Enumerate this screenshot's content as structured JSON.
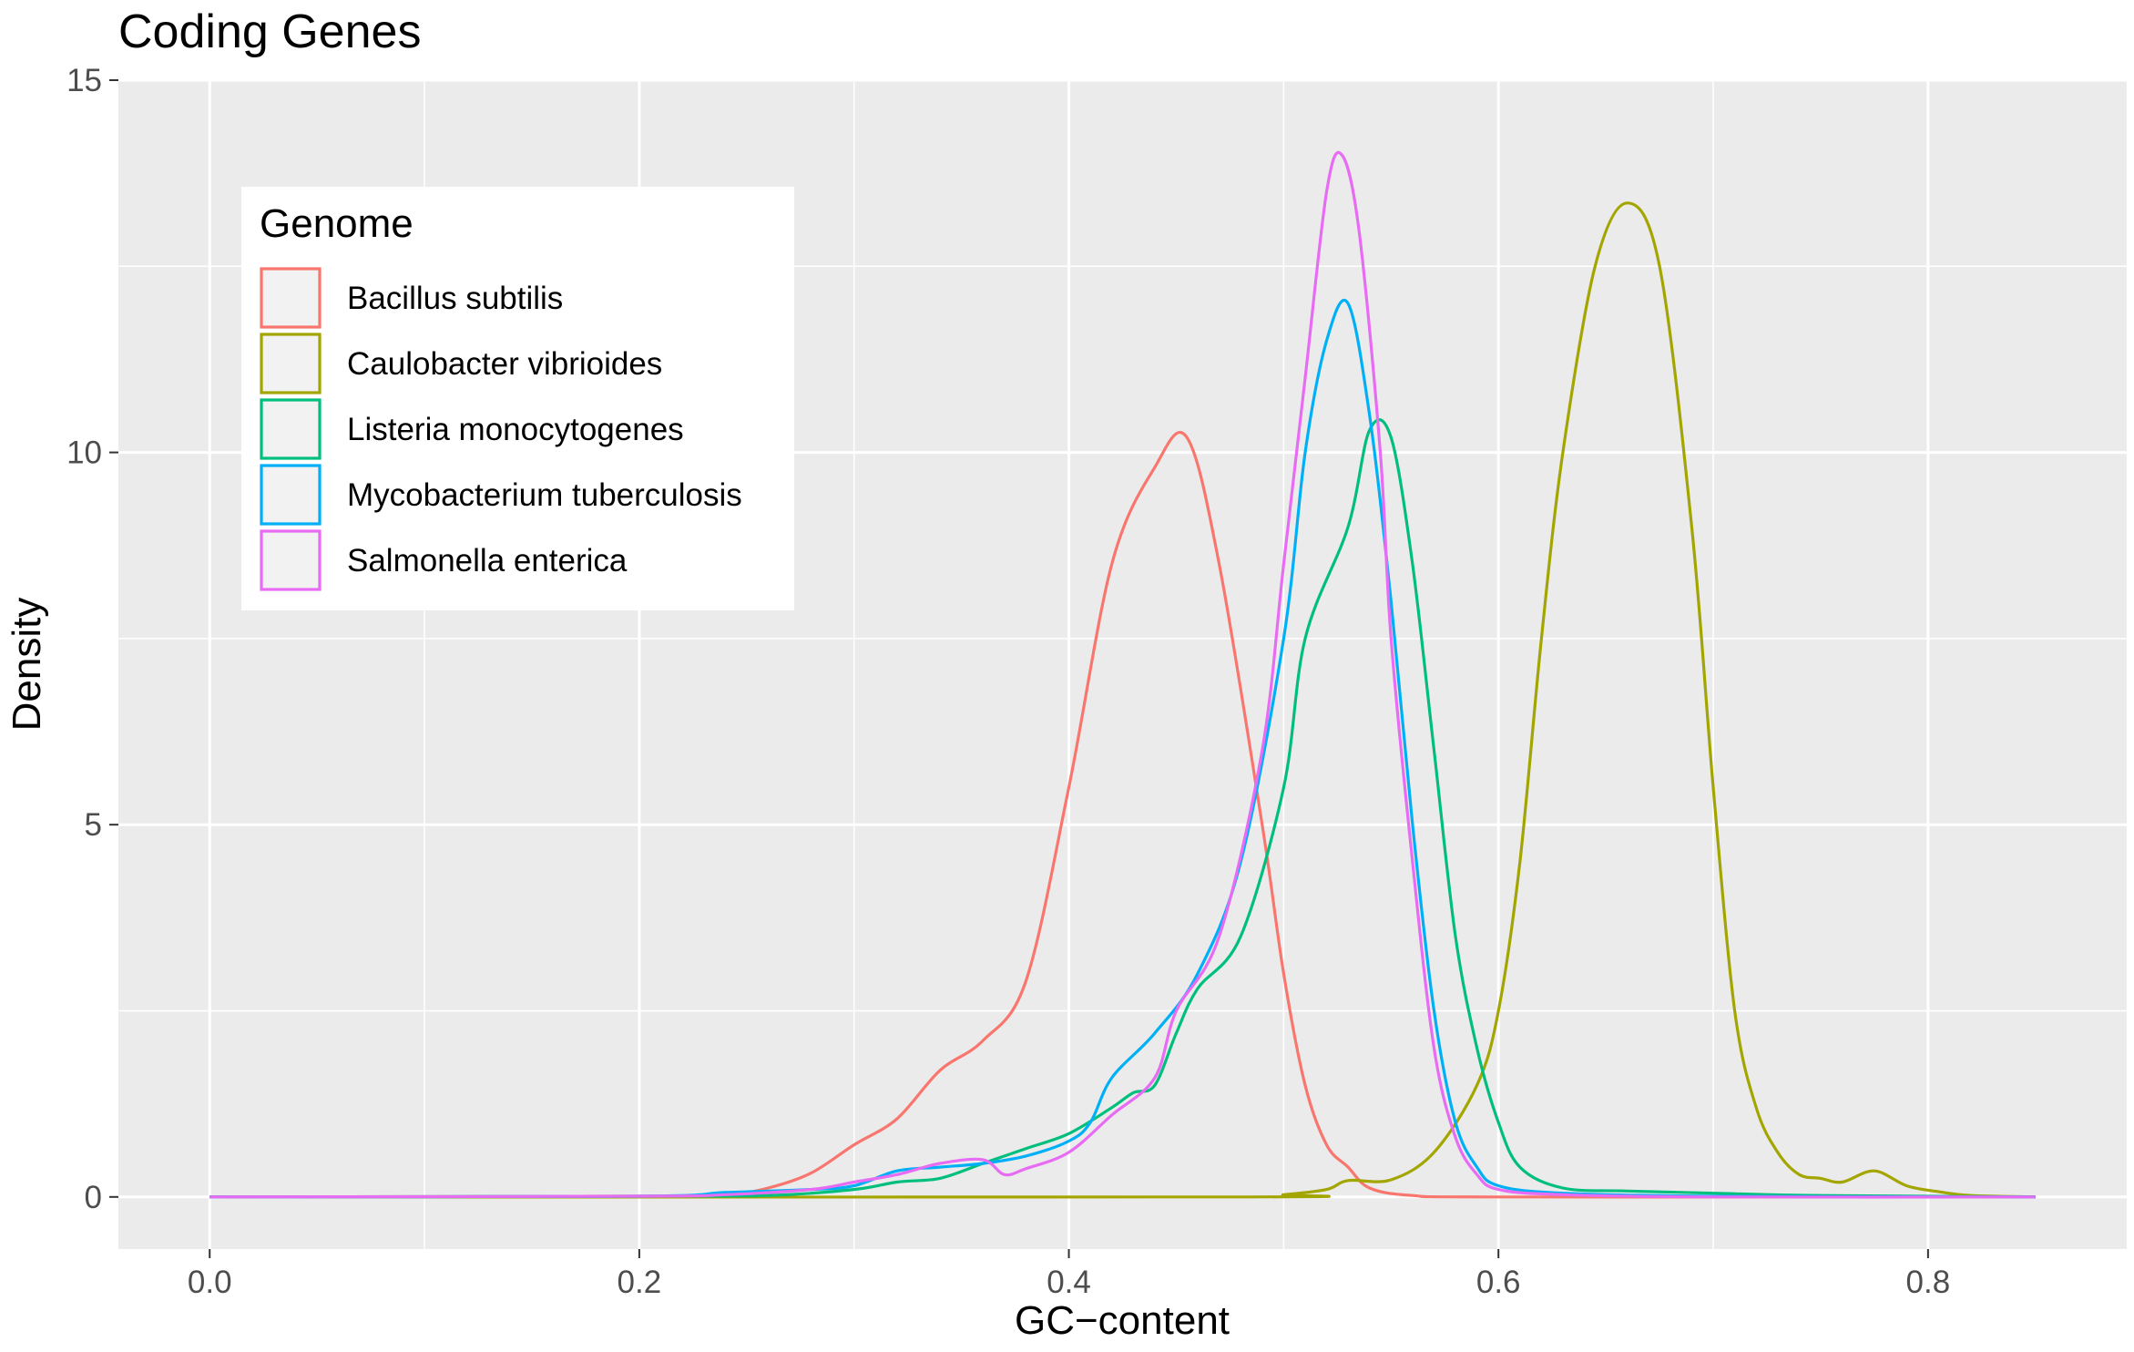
{
  "chart_data": {
    "type": "line",
    "title": "Coding Genes",
    "xlabel": "GC−content",
    "ylabel": "Density",
    "xlim": [
      -0.0425,
      0.8925
    ],
    "ylim": [
      -0.7,
      15.0
    ],
    "x_ticks": [
      0.0,
      0.2,
      0.4,
      0.6,
      0.8
    ],
    "x_tick_labels": [
      "0.0",
      "0.2",
      "0.4",
      "0.6",
      "0.8"
    ],
    "y_ticks": [
      0,
      5,
      10,
      15
    ],
    "y_tick_labels": [
      "0",
      "5",
      "10",
      "15"
    ],
    "grid": true,
    "panel_background": "#ebebeb",
    "legend": {
      "title": "Genome",
      "position": "top-left"
    },
    "series": [
      {
        "name": "Bacillus subtilis",
        "color": "#f8766d",
        "points": [
          [
            0.0,
            0
          ],
          [
            0.2,
            0.01
          ],
          [
            0.24,
            0.03
          ],
          [
            0.26,
            0.12
          ],
          [
            0.28,
            0.32
          ],
          [
            0.3,
            0.7
          ],
          [
            0.32,
            1.05
          ],
          [
            0.34,
            1.7
          ],
          [
            0.36,
            2.1
          ],
          [
            0.38,
            2.9
          ],
          [
            0.4,
            5.5
          ],
          [
            0.42,
            8.5
          ],
          [
            0.44,
            9.8
          ],
          [
            0.455,
            10.2
          ],
          [
            0.47,
            8.5
          ],
          [
            0.49,
            5.0
          ],
          [
            0.5,
            3.0
          ],
          [
            0.51,
            1.5
          ],
          [
            0.52,
            0.7
          ],
          [
            0.53,
            0.4
          ],
          [
            0.54,
            0.12
          ],
          [
            0.56,
            0.02
          ],
          [
            0.6,
            0.0
          ],
          [
            0.85,
            0.0
          ]
        ]
      },
      {
        "name": "Caulobacter vibrioides",
        "color": "#a3a500",
        "points": [
          [
            0.0,
            0
          ],
          [
            0.48,
            0.0
          ],
          [
            0.5,
            0.03
          ],
          [
            0.52,
            0.1
          ],
          [
            0.53,
            0.22
          ],
          [
            0.55,
            0.23
          ],
          [
            0.57,
            0.6
          ],
          [
            0.59,
            1.5
          ],
          [
            0.6,
            2.5
          ],
          [
            0.61,
            4.5
          ],
          [
            0.62,
            7.5
          ],
          [
            0.63,
            10.0
          ],
          [
            0.645,
            12.5
          ],
          [
            0.66,
            13.35
          ],
          [
            0.675,
            12.5
          ],
          [
            0.69,
            9.0
          ],
          [
            0.7,
            5.5
          ],
          [
            0.71,
            2.5
          ],
          [
            0.72,
            1.2
          ],
          [
            0.73,
            0.6
          ],
          [
            0.74,
            0.3
          ],
          [
            0.75,
            0.25
          ],
          [
            0.76,
            0.2
          ],
          [
            0.775,
            0.35
          ],
          [
            0.79,
            0.15
          ],
          [
            0.805,
            0.07
          ],
          [
            0.82,
            0.02
          ],
          [
            0.85,
            0.0
          ]
        ]
      },
      {
        "name": "Listeria monocytogenes",
        "color": "#00bf7d",
        "points": [
          [
            0.0,
            0
          ],
          [
            0.2,
            0.01
          ],
          [
            0.26,
            0.02
          ],
          [
            0.3,
            0.1
          ],
          [
            0.32,
            0.2
          ],
          [
            0.34,
            0.25
          ],
          [
            0.36,
            0.45
          ],
          [
            0.38,
            0.65
          ],
          [
            0.4,
            0.85
          ],
          [
            0.42,
            1.2
          ],
          [
            0.43,
            1.4
          ],
          [
            0.44,
            1.5
          ],
          [
            0.45,
            2.2
          ],
          [
            0.46,
            2.8
          ],
          [
            0.48,
            3.5
          ],
          [
            0.5,
            5.5
          ],
          [
            0.51,
            7.5
          ],
          [
            0.53,
            9.0
          ],
          [
            0.54,
            10.3
          ],
          [
            0.55,
            10.2
          ],
          [
            0.56,
            8.5
          ],
          [
            0.57,
            6.0
          ],
          [
            0.58,
            3.5
          ],
          [
            0.59,
            2.0
          ],
          [
            0.6,
            1.0
          ],
          [
            0.61,
            0.4
          ],
          [
            0.63,
            0.12
          ],
          [
            0.66,
            0.08
          ],
          [
            0.7,
            0.05
          ],
          [
            0.75,
            0.02
          ],
          [
            0.85,
            0.0
          ]
        ]
      },
      {
        "name": "Mycobacterium tuberculosis",
        "color": "#00b0f6",
        "points": [
          [
            0.0,
            0
          ],
          [
            0.2,
            0.01
          ],
          [
            0.24,
            0.06
          ],
          [
            0.28,
            0.1
          ],
          [
            0.3,
            0.15
          ],
          [
            0.32,
            0.35
          ],
          [
            0.34,
            0.4
          ],
          [
            0.36,
            0.45
          ],
          [
            0.38,
            0.55
          ],
          [
            0.4,
            0.75
          ],
          [
            0.41,
            1.0
          ],
          [
            0.42,
            1.6
          ],
          [
            0.44,
            2.2
          ],
          [
            0.46,
            3.0
          ],
          [
            0.48,
            4.5
          ],
          [
            0.5,
            7.5
          ],
          [
            0.51,
            10.0
          ],
          [
            0.52,
            11.5
          ],
          [
            0.53,
            12.0
          ],
          [
            0.54,
            10.5
          ],
          [
            0.55,
            8.0
          ],
          [
            0.56,
            5.0
          ],
          [
            0.57,
            2.5
          ],
          [
            0.58,
            1.0
          ],
          [
            0.59,
            0.4
          ],
          [
            0.6,
            0.15
          ],
          [
            0.63,
            0.05
          ],
          [
            0.7,
            0.01
          ],
          [
            0.85,
            0.0
          ]
        ]
      },
      {
        "name": "Salmonella enterica",
        "color": "#e76bf3",
        "points": [
          [
            0.0,
            0
          ],
          [
            0.2,
            0.01
          ],
          [
            0.24,
            0.03
          ],
          [
            0.28,
            0.1
          ],
          [
            0.3,
            0.2
          ],
          [
            0.32,
            0.3
          ],
          [
            0.34,
            0.45
          ],
          [
            0.36,
            0.5
          ],
          [
            0.37,
            0.3
          ],
          [
            0.38,
            0.38
          ],
          [
            0.4,
            0.6
          ],
          [
            0.42,
            1.1
          ],
          [
            0.44,
            1.6
          ],
          [
            0.45,
            2.5
          ],
          [
            0.47,
            3.5
          ],
          [
            0.49,
            6.0
          ],
          [
            0.5,
            8.5
          ],
          [
            0.51,
            11.0
          ],
          [
            0.52,
            13.5
          ],
          [
            0.527,
            14.0
          ],
          [
            0.535,
            13.0
          ],
          [
            0.545,
            10.0
          ],
          [
            0.55,
            7.5
          ],
          [
            0.56,
            4.5
          ],
          [
            0.57,
            2.0
          ],
          [
            0.58,
            0.8
          ],
          [
            0.59,
            0.3
          ],
          [
            0.6,
            0.1
          ],
          [
            0.63,
            0.03
          ],
          [
            0.7,
            0.0
          ],
          [
            0.85,
            0.0
          ]
        ]
      }
    ]
  }
}
